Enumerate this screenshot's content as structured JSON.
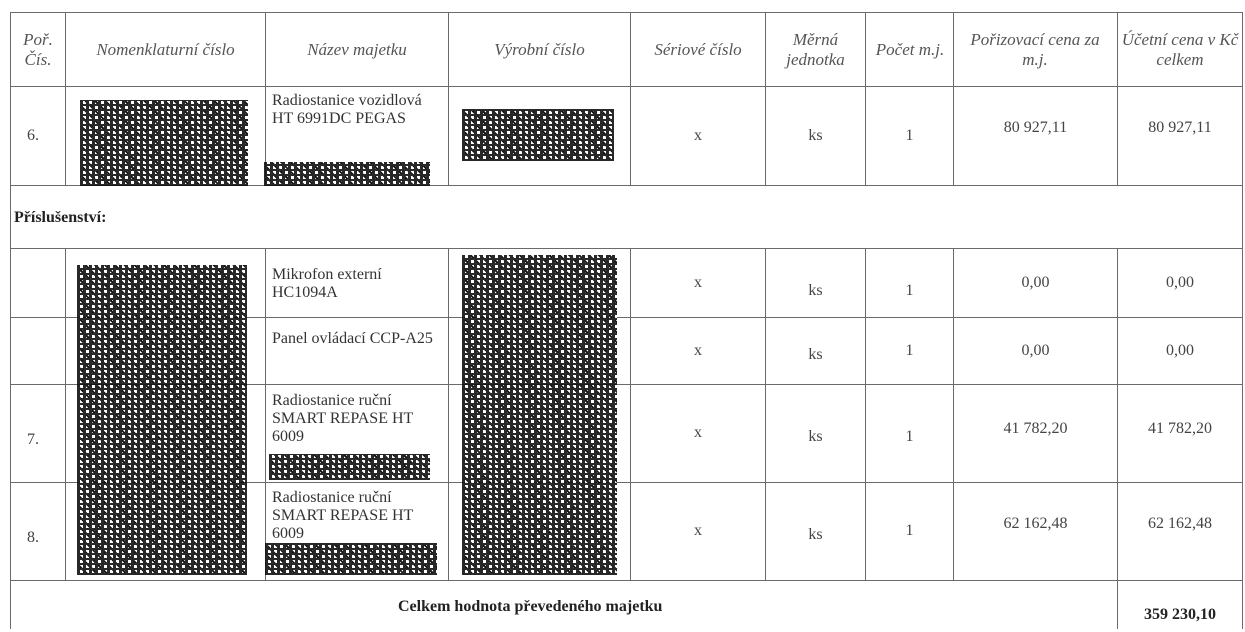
{
  "headers": {
    "por_cis": "Poř. Čís.",
    "nomenklaturni": "Nomenklaturní číslo",
    "nazev": "Název majetku",
    "vyrobni": "Výrobní číslo",
    "seriove": "Sériové číslo",
    "merna": "Měrná jednotka",
    "pocet": "Počet m.j.",
    "porizovaci": "Pořizovací cena za m.j.",
    "ucetni": "Účetní cena v Kč celkem"
  },
  "section_label": "Příslušenství:",
  "rows": [
    {
      "num": "6.",
      "name": "Radiostanice vozidlová HT 6991DC PEGAS",
      "serial": "x",
      "unit": "ks",
      "count": "1",
      "price": "80 927,11",
      "total": "80 927,11"
    },
    {
      "num": "",
      "name": "Mikrofon externí HC1094A",
      "serial": "x",
      "unit": "ks",
      "count": "1",
      "price": "0,00",
      "total": "0,00"
    },
    {
      "num": "",
      "name": "Panel ovládací CCP-A25",
      "serial": "x",
      "unit": "ks",
      "count": "1",
      "price": "0,00",
      "total": "0,00"
    },
    {
      "num": "7.",
      "name": "Radiostanice ruční SMART REPASE HT 6009",
      "serial": "x",
      "unit": "ks",
      "count": "1",
      "price": "41 782,20",
      "total": "41 782,20"
    },
    {
      "num": "8.",
      "name": "Radiostanice ruční SMART REPASE HT 6009",
      "serial": "x",
      "unit": "ks",
      "count": "1",
      "price": "62 162,48",
      "total": "62 162,48"
    }
  ],
  "total_label": "Celkem hodnota převedeného majetku",
  "total_value": "359 230,10"
}
